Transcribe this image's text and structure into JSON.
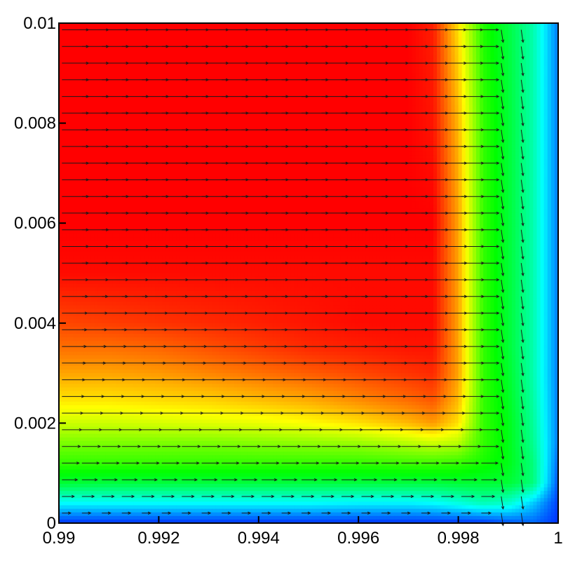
{
  "chart_data": {
    "type": "heatmap",
    "subtype": "contour-with-vector-field",
    "title": "",
    "xlabel": "",
    "ylabel": "",
    "xlim": [
      0.99,
      1.0
    ],
    "ylim": [
      0,
      0.01
    ],
    "x_ticks": [
      {
        "value": 0.99,
        "label": "0.99"
      },
      {
        "value": 0.992,
        "label": "0.992"
      },
      {
        "value": 0.994,
        "label": "0.994"
      },
      {
        "value": 0.996,
        "label": "0.996"
      },
      {
        "value": 0.998,
        "label": "0.998"
      },
      {
        "value": 1.0,
        "label": "1"
      }
    ],
    "y_ticks": [
      {
        "value": 0,
        "label": "0"
      },
      {
        "value": 0.002,
        "label": "0.002"
      },
      {
        "value": 0.004,
        "label": "0.004"
      },
      {
        "value": 0.006,
        "label": "0.006"
      },
      {
        "value": 0.008,
        "label": "0.008"
      },
      {
        "value": 0.01,
        "label": "0.01"
      }
    ],
    "colormap": [
      "#0000ff",
      "#00ffff",
      "#00ff00",
      "#ffff00",
      "#ff0000"
    ],
    "field": {
      "x": [
        0.99,
        0.991,
        0.992,
        0.993,
        0.994,
        0.995,
        0.996,
        0.997,
        0.9975,
        0.998,
        0.9985,
        0.999,
        0.9995,
        1.0
      ],
      "y": [
        0,
        0.0004,
        0.0008,
        0.0012,
        0.0016,
        0.002,
        0.0025,
        0.003,
        0.0035,
        0.004,
        0.005,
        0.006,
        0.008,
        0.01
      ],
      "values_normalized": [
        [
          0.05,
          0.05,
          0.05,
          0.05,
          0.05,
          0.05,
          0.05,
          0.05,
          0.05,
          0.05,
          0.05,
          0.08,
          0.1,
          0.05
        ],
        [
          0.25,
          0.25,
          0.25,
          0.25,
          0.25,
          0.25,
          0.24,
          0.24,
          0.25,
          0.28,
          0.32,
          0.3,
          0.2,
          0.06
        ],
        [
          0.45,
          0.44,
          0.44,
          0.44,
          0.44,
          0.44,
          0.44,
          0.44,
          0.44,
          0.45,
          0.45,
          0.45,
          0.38,
          0.08
        ],
        [
          0.55,
          0.55,
          0.55,
          0.55,
          0.55,
          0.55,
          0.55,
          0.56,
          0.56,
          0.55,
          0.52,
          0.48,
          0.38,
          0.1
        ],
        [
          0.62,
          0.62,
          0.62,
          0.62,
          0.63,
          0.64,
          0.65,
          0.68,
          0.7,
          0.68,
          0.55,
          0.48,
          0.36,
          0.12
        ],
        [
          0.7,
          0.7,
          0.71,
          0.72,
          0.73,
          0.75,
          0.78,
          0.82,
          0.85,
          0.78,
          0.55,
          0.48,
          0.35,
          0.12
        ],
        [
          0.78,
          0.78,
          0.79,
          0.8,
          0.82,
          0.84,
          0.87,
          0.9,
          0.92,
          0.82,
          0.55,
          0.47,
          0.34,
          0.12
        ],
        [
          0.84,
          0.84,
          0.85,
          0.87,
          0.89,
          0.91,
          0.93,
          0.95,
          0.96,
          0.84,
          0.55,
          0.46,
          0.33,
          0.12
        ],
        [
          0.89,
          0.89,
          0.9,
          0.92,
          0.94,
          0.96,
          0.97,
          0.98,
          0.98,
          0.84,
          0.55,
          0.45,
          0.33,
          0.12
        ],
        [
          0.93,
          0.94,
          0.95,
          0.96,
          0.97,
          0.98,
          0.99,
          0.99,
          0.99,
          0.84,
          0.55,
          0.45,
          0.33,
          0.12
        ],
        [
          0.99,
          0.99,
          0.99,
          0.99,
          0.99,
          0.99,
          0.99,
          0.99,
          0.99,
          0.84,
          0.55,
          0.45,
          0.33,
          0.12
        ],
        [
          1.0,
          1.0,
          1.0,
          1.0,
          1.0,
          1.0,
          1.0,
          1.0,
          1.0,
          0.84,
          0.55,
          0.45,
          0.33,
          0.12
        ],
        [
          1.0,
          1.0,
          1.0,
          1.0,
          1.0,
          1.0,
          1.0,
          1.0,
          0.98,
          0.82,
          0.55,
          0.45,
          0.33,
          0.12
        ],
        [
          1.0,
          1.0,
          1.0,
          1.0,
          1.0,
          1.0,
          1.0,
          1.0,
          0.97,
          0.78,
          0.53,
          0.44,
          0.33,
          0.12
        ]
      ]
    },
    "vector_field": {
      "description_rows": 30,
      "description_cols": 25,
      "main_flow_direction": "positive-x",
      "near_wall_flow_direction": "negative-y"
    },
    "grid": false,
    "legend": "none"
  }
}
